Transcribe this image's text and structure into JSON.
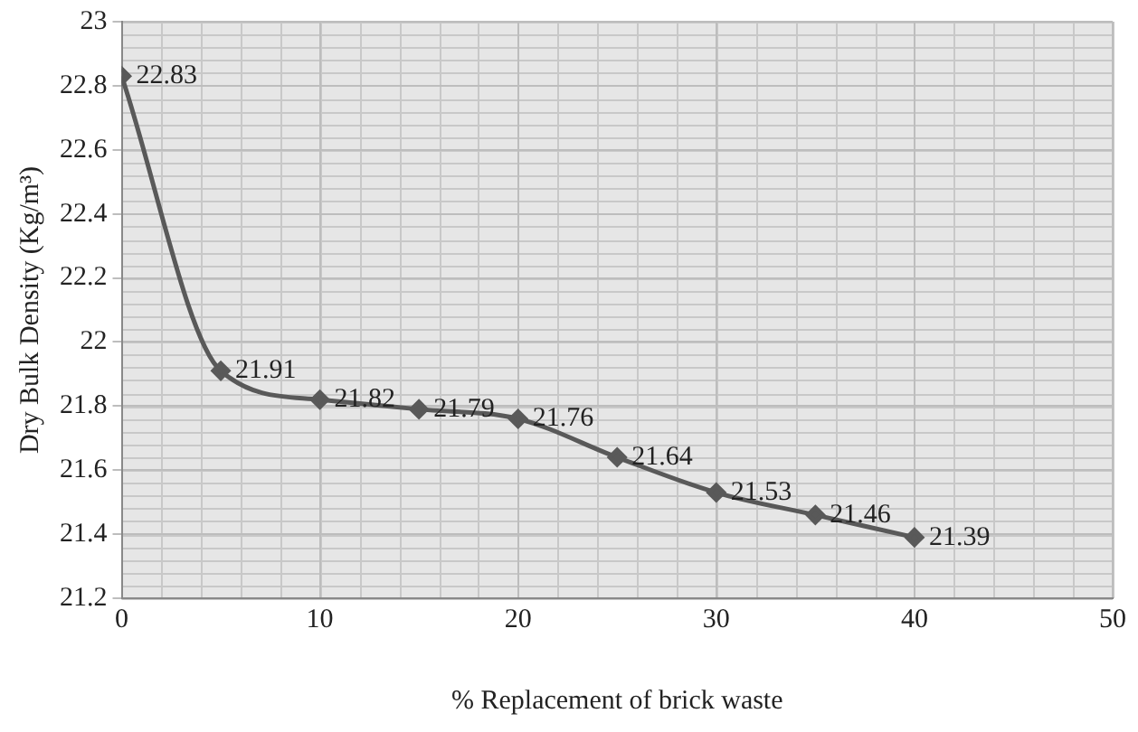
{
  "chart_data": {
    "type": "line",
    "xlabel": "% Replacement of brick waste",
    "ylabel": "Dry Bulk Density (Kg/m³)",
    "x": [
      0,
      5,
      10,
      15,
      20,
      25,
      30,
      35,
      40
    ],
    "series": [
      {
        "color": "#595959",
        "values": [
          22.83,
          21.91,
          21.82,
          21.79,
          21.76,
          21.64,
          21.53,
          21.46,
          21.39
        ]
      }
    ],
    "xlim": [
      0,
      50
    ],
    "xticks": [
      0,
      10,
      20,
      30,
      40,
      50
    ],
    "ylim": [
      21.2,
      23
    ],
    "yticks": [
      21.2,
      21.4,
      21.6,
      21.8,
      22,
      22.2,
      22.4,
      22.6,
      22.8,
      23
    ],
    "grid": true,
    "legend": false,
    "marker": "diamond",
    "line_style": "solid",
    "data_labels": true
  }
}
